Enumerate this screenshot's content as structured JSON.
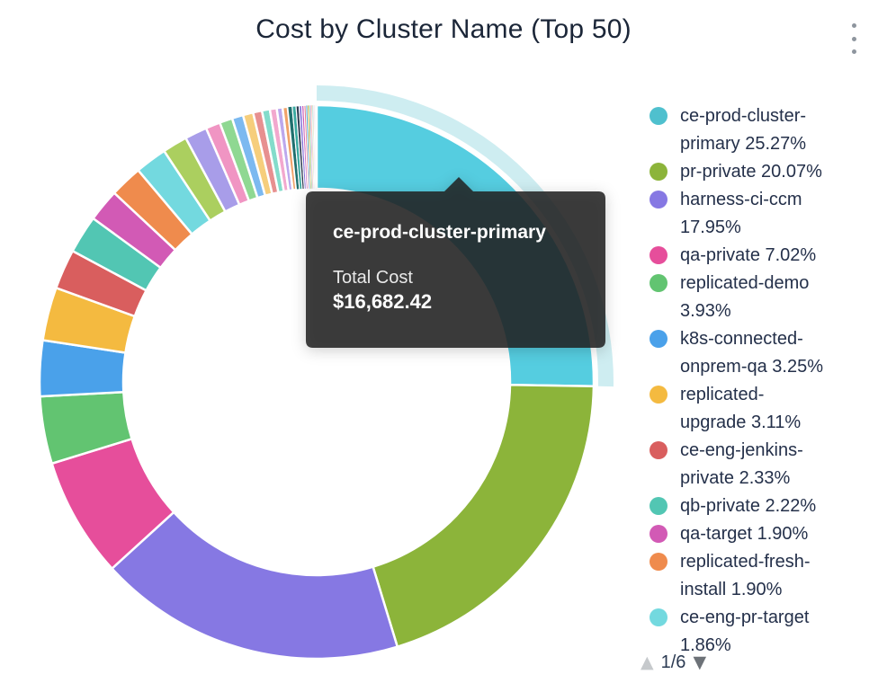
{
  "header": {
    "title": "Cost by Cluster Name (Top 50)",
    "menu_icon": "kebab-vertical"
  },
  "tooltip": {
    "title": "ce-prod-cluster-primary",
    "cost_label": "Total Cost",
    "cost_value": "$16,682.42"
  },
  "legend_pagination": {
    "up_icon": "▲",
    "label": "1/6",
    "down_icon": "▼",
    "up_enabled": false,
    "down_enabled": true
  },
  "colors": {
    "title_text": "#1B2638",
    "legend_text": "#24304A",
    "tooltip_bg": "rgba(33,33,33,0.86)",
    "background": "#FFFFFF"
  },
  "chart_data": {
    "type": "pie",
    "subtype": "donut",
    "title": "Cost by Cluster Name (Top 50)",
    "legend_position": "right",
    "inner_radius_ratio": 0.7,
    "hovered_slice": {
      "name": "ce-prod-cluster-primary",
      "total_cost": "$16,682.42",
      "pct": 25.27
    },
    "hover_fill": "#55CDE0",
    "halo_opacity": 0.28,
    "series": [
      {
        "name": "ce-prod-cluster-primary",
        "pct": 25.27,
        "pct_label": "25.27%",
        "color": "#4FC0CE",
        "lines": [
          "ce-prod-cluster-",
          "primary 25.27%"
        ]
      },
      {
        "name": "pr-private",
        "pct": 20.07,
        "pct_label": "20.07%",
        "color": "#8CB43A",
        "lines": [
          "pr-private 20.07%"
        ]
      },
      {
        "name": "harness-ci-ccm",
        "pct": 17.95,
        "pct_label": "17.95%",
        "color": "#8678E3",
        "lines": [
          "harness-ci-ccm",
          "17.95%"
        ]
      },
      {
        "name": "qa-private",
        "pct": 7.02,
        "pct_label": "7.02%",
        "color": "#E64E9B",
        "lines": [
          "qa-private 7.02%"
        ]
      },
      {
        "name": "replicated-demo",
        "pct": 3.93,
        "pct_label": "3.93%",
        "color": "#62C471",
        "lines": [
          "replicated-demo",
          "3.93%"
        ]
      },
      {
        "name": "k8s-connected-onprem-qa",
        "pct": 3.25,
        "pct_label": "3.25%",
        "color": "#4AA1EA",
        "lines": [
          "k8s-connected-",
          "onprem-qa 3.25%"
        ]
      },
      {
        "name": "replicated-upgrade",
        "pct": 3.11,
        "pct_label": "3.11%",
        "color": "#F4BA40",
        "lines": [
          "replicated-",
          "upgrade 3.11%"
        ]
      },
      {
        "name": "ce-eng-jenkins-private",
        "pct": 2.33,
        "pct_label": "2.33%",
        "color": "#D95E5E",
        "lines": [
          "ce-eng-jenkins-",
          "private 2.33%"
        ]
      },
      {
        "name": "qb-private",
        "pct": 2.22,
        "pct_label": "2.22%",
        "color": "#52C6B3",
        "lines": [
          "qb-private 2.22%"
        ]
      },
      {
        "name": "qa-target",
        "pct": 1.9,
        "pct_label": "1.90%",
        "color": "#D25AB5",
        "lines": [
          "qa-target 1.90%"
        ]
      },
      {
        "name": "replicated-fresh-install",
        "pct": 1.9,
        "pct_label": "1.90%",
        "color": "#EF8B4D",
        "lines": [
          "replicated-fresh-",
          "install 1.90%"
        ]
      },
      {
        "name": "ce-eng-pr-target",
        "pct": 1.86,
        "pct_label": "1.86%",
        "color": "#73D9DF",
        "lines": [
          "ce-eng-pr-target",
          "1.86%"
        ]
      }
    ],
    "unlabeled_slices_estimated": [
      {
        "pct": 1.45,
        "color": "#ABCF5F"
      },
      {
        "pct": 1.3,
        "color": "#A89DE9"
      },
      {
        "pct": 0.85,
        "color": "#F095C3"
      },
      {
        "pct": 0.75,
        "color": "#8FD892"
      },
      {
        "pct": 0.65,
        "color": "#7CB9F0"
      },
      {
        "pct": 0.6,
        "color": "#F6CE7C"
      },
      {
        "pct": 0.52,
        "color": "#E79090"
      },
      {
        "pct": 0.46,
        "color": "#83DCCB"
      },
      {
        "pct": 0.4,
        "color": "#F2A8CE"
      },
      {
        "pct": 0.34,
        "color": "#BCA8ED"
      },
      {
        "pct": 0.3,
        "color": "#F0A269"
      },
      {
        "pct": 0.26,
        "color": "#20706E"
      },
      {
        "pct": 0.22,
        "color": "#3AA9A0"
      },
      {
        "pct": 0.18,
        "color": "#2F3B52"
      },
      {
        "pct": 0.15,
        "color": "#7D6BD8"
      },
      {
        "pct": 0.13,
        "color": "#C75AB8"
      },
      {
        "pct": 0.11,
        "color": "#E5707E"
      },
      {
        "pct": 0.09,
        "color": "#58B7E8"
      },
      {
        "pct": 0.08,
        "color": "#E8B84B"
      },
      {
        "pct": 0.07,
        "color": "#6BC98F"
      },
      {
        "pct": 0.06,
        "color": "#D98ADF"
      },
      {
        "pct": 0.05,
        "color": "#F2975F"
      },
      {
        "pct": 0.04,
        "color": "#4FBFC9"
      },
      {
        "pct": 0.04,
        "color": "#9BC34F"
      },
      {
        "pct": 0.03,
        "color": "#8F7FE8"
      },
      {
        "pct": 0.03,
        "color": "#E563A0"
      },
      {
        "pct": 0.02,
        "color": "#46B8C9"
      },
      {
        "pct": 0.02,
        "color": "#97BD45"
      },
      {
        "pct": 0.02,
        "color": "#8D7BE4"
      },
      {
        "pct": 0.02,
        "color": "#E85D96"
      },
      {
        "pct": 0.02,
        "color": "#5FC06E"
      },
      {
        "pct": 0.01,
        "color": "#4D9FE3"
      },
      {
        "pct": 0.01,
        "color": "#F2B83F"
      },
      {
        "pct": 0.01,
        "color": "#D45F5C"
      }
    ]
  }
}
